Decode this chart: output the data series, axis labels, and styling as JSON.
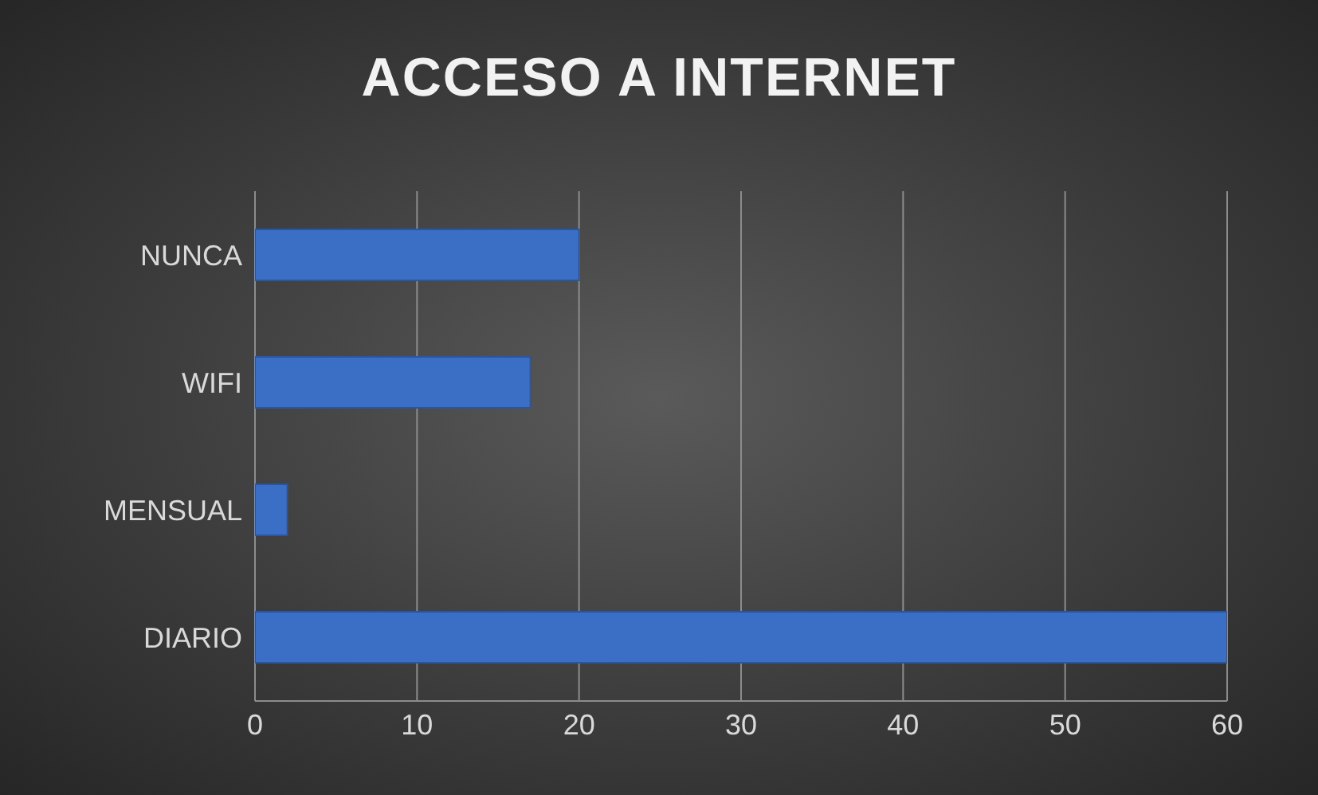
{
  "chart_data": {
    "type": "bar",
    "orientation": "horizontal",
    "title": "ACCESO A INTERNET",
    "categories": [
      "NUNCA",
      "WIFI",
      "MENSUAL",
      "DIARIO"
    ],
    "values": [
      20,
      17,
      2,
      60
    ],
    "color": "#3b6fc6",
    "xlim": [
      0,
      60
    ],
    "xticks": [
      0,
      10,
      20,
      30,
      40,
      50,
      60
    ],
    "grid": "x"
  }
}
